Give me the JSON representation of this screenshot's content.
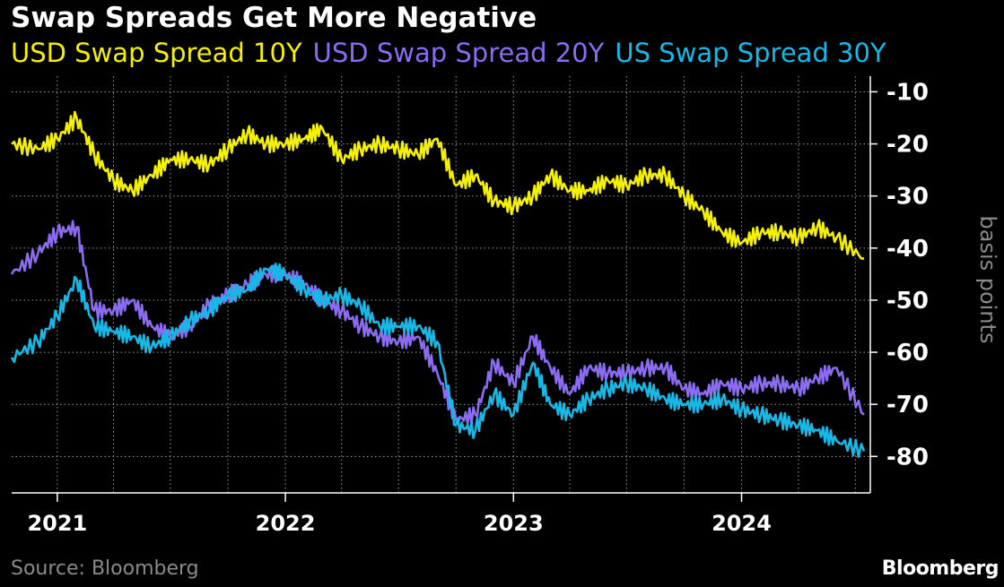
{
  "chart_data": {
    "type": "line",
    "title": "Swap Spreads Get More Negative",
    "ylabel": "basis points",
    "ylim": [
      -87,
      -7
    ],
    "y_ticks": [
      -10,
      -20,
      -30,
      -40,
      -50,
      -60,
      -70,
      -80
    ],
    "x_ticks": [
      "2021",
      "2022",
      "2023",
      "2024"
    ],
    "xlim": [
      "2020-10-20",
      "2024-07-25"
    ],
    "grid": true,
    "legend_position": "top",
    "source": "Source: Bloomberg",
    "brand": "Bloomberg",
    "series": [
      {
        "name": "USD Swap Spread 10Y",
        "color": "#f5ef00",
        "points": [
          [
            "2020-10-20",
            -20
          ],
          [
            "2020-12-01",
            -21
          ],
          [
            "2021-01-01",
            -19
          ],
          [
            "2021-02-01",
            -15
          ],
          [
            "2021-03-01",
            -22
          ],
          [
            "2021-04-01",
            -27
          ],
          [
            "2021-05-01",
            -29
          ],
          [
            "2021-06-01",
            -26
          ],
          [
            "2021-07-01",
            -23
          ],
          [
            "2021-08-01",
            -23
          ],
          [
            "2021-09-01",
            -24
          ],
          [
            "2021-10-01",
            -21
          ],
          [
            "2021-11-01",
            -18
          ],
          [
            "2021-12-01",
            -20
          ],
          [
            "2022-01-01",
            -20
          ],
          [
            "2022-02-01",
            -19
          ],
          [
            "2022-03-01",
            -17
          ],
          [
            "2022-04-01",
            -23
          ],
          [
            "2022-05-01",
            -21
          ],
          [
            "2022-06-01",
            -20
          ],
          [
            "2022-07-01",
            -21
          ],
          [
            "2022-08-01",
            -22
          ],
          [
            "2022-09-01",
            -19
          ],
          [
            "2022-10-01",
            -28
          ],
          [
            "2022-11-01",
            -26
          ],
          [
            "2022-12-01",
            -31
          ],
          [
            "2023-01-01",
            -32
          ],
          [
            "2023-02-01",
            -30
          ],
          [
            "2023-03-01",
            -26
          ],
          [
            "2023-04-01",
            -29
          ],
          [
            "2023-05-01",
            -29
          ],
          [
            "2023-06-01",
            -27
          ],
          [
            "2023-07-01",
            -28
          ],
          [
            "2023-08-01",
            -26
          ],
          [
            "2023-09-01",
            -26
          ],
          [
            "2023-10-01",
            -30
          ],
          [
            "2023-11-01",
            -33
          ],
          [
            "2023-12-01",
            -37
          ],
          [
            "2024-01-01",
            -39
          ],
          [
            "2024-02-01",
            -37
          ],
          [
            "2024-03-01",
            -37
          ],
          [
            "2024-04-01",
            -38
          ],
          [
            "2024-05-01",
            -36
          ],
          [
            "2024-06-01",
            -38
          ],
          [
            "2024-07-15",
            -42
          ]
        ]
      },
      {
        "name": "USD Swap Spread 20Y",
        "color": "#8b6cf0",
        "points": [
          [
            "2020-10-20",
            -45
          ],
          [
            "2020-12-01",
            -41
          ],
          [
            "2021-01-01",
            -37
          ],
          [
            "2021-02-01",
            -36
          ],
          [
            "2021-03-01",
            -52
          ],
          [
            "2021-04-01",
            -52
          ],
          [
            "2021-05-01",
            -50
          ],
          [
            "2021-06-01",
            -55
          ],
          [
            "2021-07-01",
            -57
          ],
          [
            "2021-08-01",
            -55
          ],
          [
            "2021-09-01",
            -51
          ],
          [
            "2021-10-01",
            -49
          ],
          [
            "2021-11-01",
            -47
          ],
          [
            "2021-12-01",
            -45
          ],
          [
            "2022-01-01",
            -45
          ],
          [
            "2022-02-01",
            -47
          ],
          [
            "2022-03-01",
            -50
          ],
          [
            "2022-04-01",
            -52
          ],
          [
            "2022-05-01",
            -55
          ],
          [
            "2022-06-01",
            -57
          ],
          [
            "2022-07-01",
            -58
          ],
          [
            "2022-08-01",
            -57
          ],
          [
            "2022-09-01",
            -64
          ],
          [
            "2022-10-01",
            -73
          ],
          [
            "2022-11-01",
            -72
          ],
          [
            "2022-12-01",
            -62
          ],
          [
            "2023-01-01",
            -66
          ],
          [
            "2023-02-01",
            -57
          ],
          [
            "2023-03-01",
            -63
          ],
          [
            "2023-04-01",
            -68
          ],
          [
            "2023-05-01",
            -63
          ],
          [
            "2023-06-01",
            -64
          ],
          [
            "2023-07-01",
            -64
          ],
          [
            "2023-08-01",
            -63
          ],
          [
            "2023-09-01",
            -63
          ],
          [
            "2023-10-01",
            -67
          ],
          [
            "2023-11-01",
            -68
          ],
          [
            "2023-12-01",
            -66
          ],
          [
            "2024-01-01",
            -67
          ],
          [
            "2024-02-01",
            -66
          ],
          [
            "2024-03-01",
            -66
          ],
          [
            "2024-04-01",
            -67
          ],
          [
            "2024-05-01",
            -65
          ],
          [
            "2024-06-01",
            -63
          ],
          [
            "2024-07-15",
            -72
          ]
        ]
      },
      {
        "name": "US Swap Spread 30Y",
        "color": "#17b8e6",
        "points": [
          [
            "2020-10-20",
            -61
          ],
          [
            "2020-12-01",
            -58
          ],
          [
            "2021-01-01",
            -53
          ],
          [
            "2021-02-01",
            -46
          ],
          [
            "2021-03-01",
            -55
          ],
          [
            "2021-04-01",
            -56
          ],
          [
            "2021-05-01",
            -57
          ],
          [
            "2021-06-01",
            -59
          ],
          [
            "2021-07-01",
            -57
          ],
          [
            "2021-08-01",
            -54
          ],
          [
            "2021-09-01",
            -52
          ],
          [
            "2021-10-01",
            -49
          ],
          [
            "2021-11-01",
            -48
          ],
          [
            "2021-12-01",
            -44
          ],
          [
            "2022-01-01",
            -45
          ],
          [
            "2022-02-01",
            -48
          ],
          [
            "2022-03-01",
            -50
          ],
          [
            "2022-04-01",
            -49
          ],
          [
            "2022-05-01",
            -51
          ],
          [
            "2022-06-01",
            -55
          ],
          [
            "2022-07-01",
            -55
          ],
          [
            "2022-08-01",
            -55
          ],
          [
            "2022-09-01",
            -58
          ],
          [
            "2022-10-01",
            -74
          ],
          [
            "2022-11-01",
            -75
          ],
          [
            "2022-12-01",
            -68
          ],
          [
            "2023-01-01",
            -72
          ],
          [
            "2023-02-01",
            -62
          ],
          [
            "2023-03-01",
            -70
          ],
          [
            "2023-04-01",
            -72
          ],
          [
            "2023-05-01",
            -69
          ],
          [
            "2023-06-01",
            -67
          ],
          [
            "2023-07-01",
            -66
          ],
          [
            "2023-08-01",
            -67
          ],
          [
            "2023-09-01",
            -69
          ],
          [
            "2023-10-01",
            -70
          ],
          [
            "2023-11-01",
            -70
          ],
          [
            "2023-12-01",
            -69
          ],
          [
            "2024-01-01",
            -71
          ],
          [
            "2024-02-01",
            -72
          ],
          [
            "2024-03-01",
            -73
          ],
          [
            "2024-04-01",
            -74
          ],
          [
            "2024-05-01",
            -75
          ],
          [
            "2024-06-01",
            -77
          ],
          [
            "2024-07-15",
            -79
          ]
        ]
      }
    ]
  }
}
